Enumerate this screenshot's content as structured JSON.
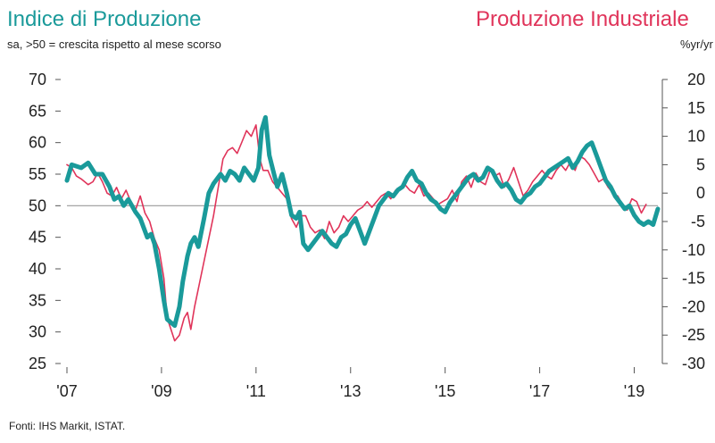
{
  "chart_data": {
    "type": "line",
    "title": "Indice di Produzione",
    "title_right": "Produzione Industriale",
    "subtitle": "sa, >50 = crescita rispetto al mese scorso",
    "ylabel_right": "%yr/yr",
    "source": "Fonti: IHS Markit, ISTAT.",
    "x_ticks": [
      "'07",
      "'09",
      "'11",
      "'13",
      "'15",
      "'17",
      "'19"
    ],
    "y_left_ticks": [
      "70",
      "65",
      "60",
      "55",
      "50",
      "45",
      "40",
      "35",
      "30",
      "25"
    ],
    "y_right_ticks": [
      "20",
      "15",
      "10",
      "5",
      "0",
      "-5",
      "-10",
      "-15",
      "-20",
      "-25",
      "-30"
    ],
    "ylim_left": [
      25,
      70
    ],
    "ylim_right": [
      -30,
      20
    ],
    "reference_line_left": 50,
    "grid": false,
    "colors": {
      "pmi": "#1a9a9a",
      "production": "#e0345a",
      "reference": "#999999"
    },
    "series": [
      {
        "axis": "left",
        "color": "#1a9a9a",
        "points": [
          [
            2007.0,
            54
          ],
          [
            2007.1,
            56.5
          ],
          [
            2007.3,
            56
          ],
          [
            2007.45,
            56.8
          ],
          [
            2007.6,
            55
          ],
          [
            2007.75,
            55
          ],
          [
            2007.9,
            53
          ],
          [
            2008.0,
            51
          ],
          [
            2008.1,
            51.5
          ],
          [
            2008.2,
            50
          ],
          [
            2008.3,
            51
          ],
          [
            2008.45,
            49
          ],
          [
            2008.55,
            48
          ],
          [
            2008.7,
            45
          ],
          [
            2008.78,
            45.5
          ],
          [
            2008.85,
            44
          ],
          [
            2008.95,
            40
          ],
          [
            2009.05,
            35
          ],
          [
            2009.12,
            32
          ],
          [
            2009.2,
            31.5
          ],
          [
            2009.28,
            31
          ],
          [
            2009.38,
            34
          ],
          [
            2009.45,
            38
          ],
          [
            2009.55,
            42
          ],
          [
            2009.62,
            44
          ],
          [
            2009.7,
            45
          ],
          [
            2009.78,
            43.5
          ],
          [
            2009.9,
            48
          ],
          [
            2010.0,
            52
          ],
          [
            2010.1,
            53.5
          ],
          [
            2010.25,
            55
          ],
          [
            2010.35,
            54
          ],
          [
            2010.45,
            55.5
          ],
          [
            2010.55,
            55
          ],
          [
            2010.65,
            54
          ],
          [
            2010.75,
            56
          ],
          [
            2010.85,
            55
          ],
          [
            2010.95,
            54
          ],
          [
            2011.05,
            56
          ],
          [
            2011.12,
            62
          ],
          [
            2011.2,
            64
          ],
          [
            2011.28,
            58
          ],
          [
            2011.38,
            55
          ],
          [
            2011.45,
            53
          ],
          [
            2011.55,
            55
          ],
          [
            2011.65,
            52
          ],
          [
            2011.75,
            48.5
          ],
          [
            2011.85,
            48
          ],
          [
            2011.92,
            49
          ],
          [
            2012.0,
            44
          ],
          [
            2012.1,
            43
          ],
          [
            2012.2,
            44
          ],
          [
            2012.3,
            45
          ],
          [
            2012.4,
            46
          ],
          [
            2012.5,
            45
          ],
          [
            2012.6,
            44
          ],
          [
            2012.7,
            43.5
          ],
          [
            2012.8,
            45
          ],
          [
            2012.9,
            45.5
          ],
          [
            2013.0,
            47
          ],
          [
            2013.1,
            48
          ],
          [
            2013.2,
            46
          ],
          [
            2013.3,
            44
          ],
          [
            2013.4,
            46
          ],
          [
            2013.5,
            48
          ],
          [
            2013.6,
            50
          ],
          [
            2013.7,
            51
          ],
          [
            2013.8,
            52
          ],
          [
            2013.9,
            51.5
          ],
          [
            2014.0,
            52.5
          ],
          [
            2014.1,
            53
          ],
          [
            2014.2,
            54.5
          ],
          [
            2014.3,
            55.5
          ],
          [
            2014.4,
            54
          ],
          [
            2014.5,
            53.5
          ],
          [
            2014.6,
            52
          ],
          [
            2014.7,
            51
          ],
          [
            2014.8,
            50.5
          ],
          [
            2014.9,
            49.5
          ],
          [
            2015.0,
            49
          ],
          [
            2015.1,
            50.5
          ],
          [
            2015.2,
            51.5
          ],
          [
            2015.3,
            52.5
          ],
          [
            2015.4,
            53.5
          ],
          [
            2015.5,
            54.5
          ],
          [
            2015.6,
            55
          ],
          [
            2015.7,
            54
          ],
          [
            2015.8,
            54.5
          ],
          [
            2015.9,
            56
          ],
          [
            2016.0,
            55.5
          ],
          [
            2016.1,
            54
          ],
          [
            2016.2,
            53
          ],
          [
            2016.3,
            53.5
          ],
          [
            2016.4,
            52.5
          ],
          [
            2016.5,
            51
          ],
          [
            2016.6,
            50.5
          ],
          [
            2016.7,
            51.5
          ],
          [
            2016.8,
            52
          ],
          [
            2016.9,
            53
          ],
          [
            2017.0,
            53.5
          ],
          [
            2017.1,
            54.5
          ],
          [
            2017.2,
            55.5
          ],
          [
            2017.3,
            56
          ],
          [
            2017.4,
            56.5
          ],
          [
            2017.5,
            57
          ],
          [
            2017.6,
            57.5
          ],
          [
            2017.7,
            56
          ],
          [
            2017.8,
            57
          ],
          [
            2017.9,
            58.5
          ],
          [
            2018.0,
            59.5
          ],
          [
            2018.1,
            60
          ],
          [
            2018.2,
            58
          ],
          [
            2018.3,
            56
          ],
          [
            2018.4,
            54
          ],
          [
            2018.5,
            53
          ],
          [
            2018.6,
            51.5
          ],
          [
            2018.7,
            50.5
          ],
          [
            2018.8,
            49.5
          ],
          [
            2018.9,
            50
          ],
          [
            2019.0,
            48.5
          ],
          [
            2019.1,
            47.5
          ],
          [
            2019.2,
            47
          ],
          [
            2019.3,
            47.5
          ],
          [
            2019.4,
            47
          ],
          [
            2019.5,
            49.5
          ]
        ]
      },
      {
        "axis": "right",
        "color": "#e0345a",
        "points": [
          [
            2007.0,
            5
          ],
          [
            2007.1,
            4.5
          ],
          [
            2007.2,
            3
          ],
          [
            2007.3,
            2.5
          ],
          [
            2007.45,
            1.5
          ],
          [
            2007.55,
            2
          ],
          [
            2007.65,
            3.5
          ],
          [
            2007.75,
            2
          ],
          [
            2007.85,
            0
          ],
          [
            2007.95,
            -0.5
          ],
          [
            2008.05,
            1
          ],
          [
            2008.15,
            -1
          ],
          [
            2008.25,
            0.5
          ],
          [
            2008.35,
            -1.5
          ],
          [
            2008.45,
            -3
          ],
          [
            2008.55,
            -0.5
          ],
          [
            2008.65,
            -3.5
          ],
          [
            2008.75,
            -5
          ],
          [
            2008.85,
            -8
          ],
          [
            2008.95,
            -10
          ],
          [
            2009.05,
            -15
          ],
          [
            2009.12,
            -22
          ],
          [
            2009.2,
            -24
          ],
          [
            2009.28,
            -26
          ],
          [
            2009.38,
            -25
          ],
          [
            2009.48,
            -22
          ],
          [
            2009.55,
            -21
          ],
          [
            2009.62,
            -24
          ],
          [
            2009.7,
            -20
          ],
          [
            2009.8,
            -16
          ],
          [
            2009.9,
            -12
          ],
          [
            2010.0,
            -8
          ],
          [
            2010.1,
            -4
          ],
          [
            2010.2,
            1
          ],
          [
            2010.3,
            6
          ],
          [
            2010.4,
            7.5
          ],
          [
            2010.5,
            8
          ],
          [
            2010.6,
            7
          ],
          [
            2010.7,
            9
          ],
          [
            2010.8,
            11
          ],
          [
            2010.9,
            10
          ],
          [
            2011.0,
            12
          ],
          [
            2011.08,
            6
          ],
          [
            2011.15,
            4
          ],
          [
            2011.25,
            4
          ],
          [
            2011.35,
            2
          ],
          [
            2011.45,
            1
          ],
          [
            2011.55,
            0
          ],
          [
            2011.65,
            -1
          ],
          [
            2011.75,
            -4.5
          ],
          [
            2011.85,
            -6
          ],
          [
            2011.95,
            -4
          ],
          [
            2012.05,
            -4
          ],
          [
            2012.15,
            -6
          ],
          [
            2012.25,
            -7
          ],
          [
            2012.35,
            -6.5
          ],
          [
            2012.45,
            -8
          ],
          [
            2012.55,
            -5
          ],
          [
            2012.65,
            -7
          ],
          [
            2012.75,
            -6
          ],
          [
            2012.85,
            -4
          ],
          [
            2012.95,
            -5
          ],
          [
            2013.05,
            -4
          ],
          [
            2013.15,
            -3
          ],
          [
            2013.25,
            -2.5
          ],
          [
            2013.35,
            -1.5
          ],
          [
            2013.45,
            -2.5
          ],
          [
            2013.55,
            -1.5
          ],
          [
            2013.65,
            -0.5
          ],
          [
            2013.75,
            0
          ],
          [
            2013.85,
            -1
          ],
          [
            2013.95,
            0.5
          ],
          [
            2014.05,
            1
          ],
          [
            2014.15,
            1.5
          ],
          [
            2014.25,
            0.5
          ],
          [
            2014.35,
            0
          ],
          [
            2014.45,
            1.5
          ],
          [
            2014.55,
            -0.5
          ],
          [
            2014.65,
            0
          ],
          [
            2014.75,
            -1
          ],
          [
            2014.85,
            -2
          ],
          [
            2014.95,
            -1.5
          ],
          [
            2015.05,
            -1
          ],
          [
            2015.15,
            0.5
          ],
          [
            2015.25,
            -1.5
          ],
          [
            2015.35,
            2
          ],
          [
            2015.45,
            3
          ],
          [
            2015.55,
            1
          ],
          [
            2015.65,
            3.5
          ],
          [
            2015.75,
            2
          ],
          [
            2015.85,
            1.5
          ],
          [
            2015.95,
            4
          ],
          [
            2016.05,
            3
          ],
          [
            2016.15,
            3.5
          ],
          [
            2016.25,
            1
          ],
          [
            2016.35,
            2.5
          ],
          [
            2016.45,
            4.5
          ],
          [
            2016.55,
            2
          ],
          [
            2016.65,
            -0.5
          ],
          [
            2016.75,
            0.5
          ],
          [
            2016.85,
            2
          ],
          [
            2016.95,
            3
          ],
          [
            2017.05,
            4
          ],
          [
            2017.15,
            3
          ],
          [
            2017.25,
            2.5
          ],
          [
            2017.35,
            4
          ],
          [
            2017.45,
            5
          ],
          [
            2017.55,
            4
          ],
          [
            2017.65,
            5.5
          ],
          [
            2017.75,
            4
          ],
          [
            2017.85,
            6.5
          ],
          [
            2017.95,
            6
          ],
          [
            2018.05,
            5
          ],
          [
            2018.15,
            3.5
          ],
          [
            2018.25,
            2
          ],
          [
            2018.35,
            2.5
          ],
          [
            2018.45,
            1
          ],
          [
            2018.55,
            0
          ],
          [
            2018.65,
            -0.5
          ],
          [
            2018.75,
            -2
          ],
          [
            2018.85,
            -3
          ],
          [
            2018.95,
            -1
          ],
          [
            2019.05,
            -1.5
          ],
          [
            2019.15,
            -3.5
          ],
          [
            2019.25,
            -2
          ]
        ]
      }
    ]
  }
}
